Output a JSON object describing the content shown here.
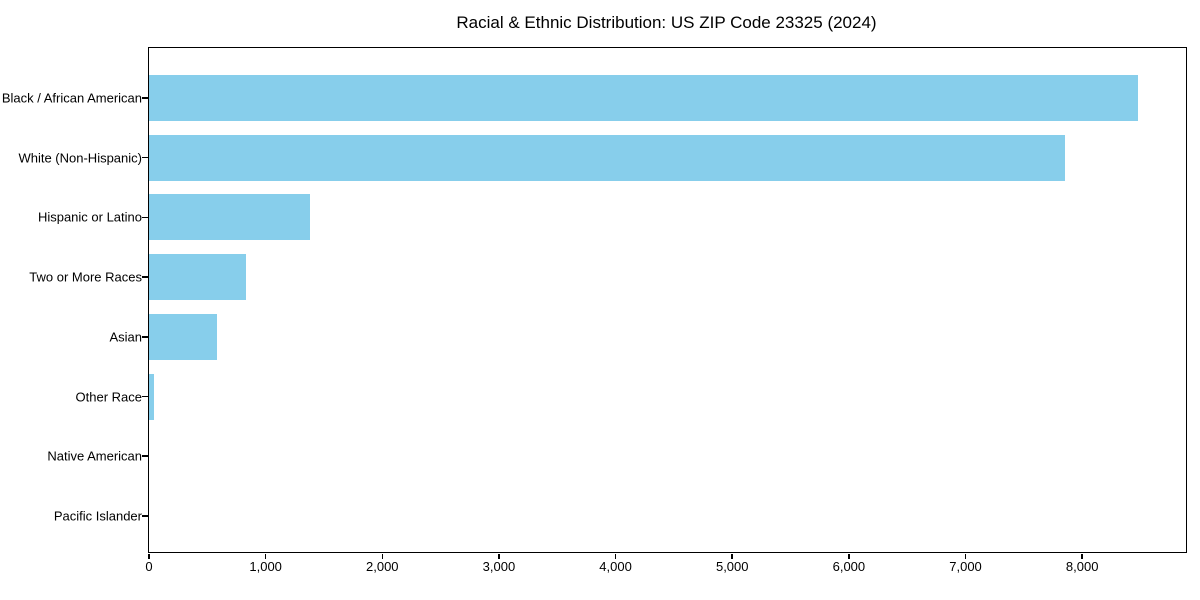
{
  "chart_data": {
    "type": "bar",
    "orientation": "horizontal",
    "title": "Racial & Ethnic Distribution: US ZIP Code 23325 (2024)",
    "categories": [
      "Black / African American",
      "White (Non-Hispanic)",
      "Hispanic or Latino",
      "Two or More Races",
      "Asian",
      "Other Race",
      "Native American",
      "Pacific Islander"
    ],
    "values": [
      8480,
      7850,
      1380,
      830,
      585,
      40,
      0,
      0
    ],
    "xlabel": "",
    "ylabel": "",
    "xlim": [
      0,
      8890
    ],
    "xticks": [
      0,
      1000,
      2000,
      3000,
      4000,
      5000,
      6000,
      7000,
      8000
    ],
    "xtick_labels": [
      "0",
      "1,000",
      "2,000",
      "3,000",
      "4,000",
      "5,000",
      "6,000",
      "7,000",
      "8,000"
    ],
    "bar_color": "#87CEEB",
    "background_color": "#ffffff",
    "spine_color": "#000000",
    "grid": false,
    "legend": null
  }
}
